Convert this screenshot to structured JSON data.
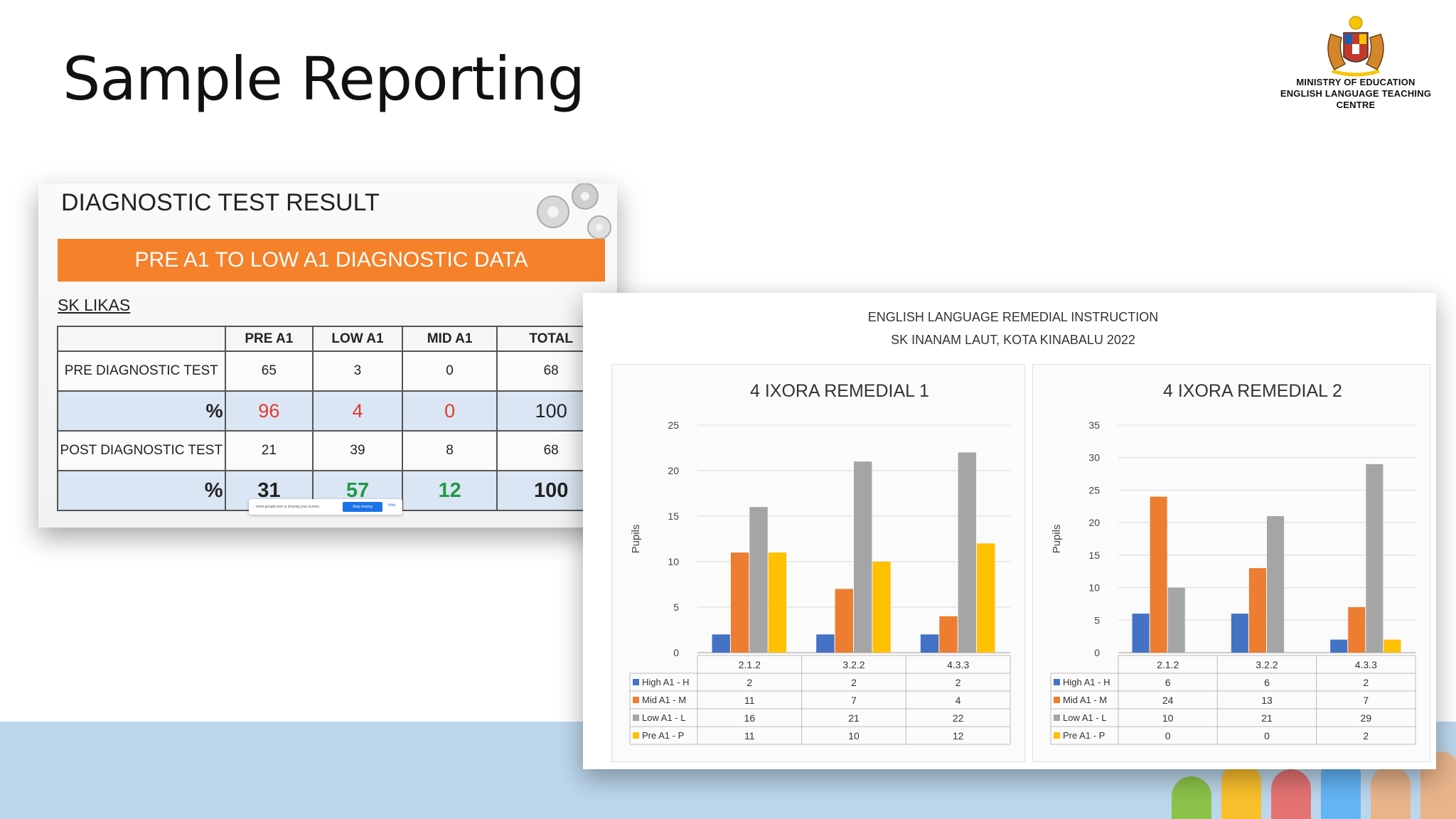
{
  "slide": {
    "title": "Sample Reporting"
  },
  "logo": {
    "name": "crest-icon",
    "org_line1": "MINISTRY OF EDUCATION",
    "org_line2": "ENGLISH LANGUAGE TEACHING CENTRE"
  },
  "diagnostic": {
    "title": "DIAGNOSTIC TEST RESULT",
    "banner": "PRE A1 TO LOW A1 DIAGNOSTIC DATA",
    "school": "SK LIKAS",
    "headers": [
      "",
      "PRE A1",
      "LOW A1",
      "MID A1",
      "TOTAL"
    ],
    "rows": [
      {
        "label": "PRE DIAGNOSTIC TEST",
        "values": [
          "65",
          "3",
          "0",
          "68"
        ]
      },
      {
        "label": "%",
        "values": [
          "96",
          "4",
          "0",
          "100"
        ]
      },
      {
        "label": "POST DIAGNOSTIC TEST",
        "values": [
          "21",
          "39",
          "8",
          "68"
        ]
      },
      {
        "label": "%",
        "values": [
          "31",
          "57",
          "12",
          "100"
        ]
      }
    ],
    "share_bar": {
      "text": "meet.google.com is sharing your screen.",
      "button": "Stop sharing",
      "hide": "Hide"
    },
    "colors": {
      "banner": "#f5812a",
      "pct_pre": "#e23a2e",
      "pct_post": "#1f9a45"
    }
  },
  "remedial": {
    "title_line1": "ENGLISH LANGUAGE REMEDIAL INSTRUCTION",
    "title_line2": "SK INANAM LAUT, KOTA KINABALU 2022"
  },
  "chart_data": [
    {
      "type": "bar",
      "title": "4 IXORA REMEDIAL 1",
      "ylabel": "Pupils",
      "xlabel": "",
      "ylim": [
        0,
        25
      ],
      "yticks": [
        0,
        5,
        10,
        15,
        20,
        25
      ],
      "categories": [
        "2.1.2",
        "3.2.2",
        "4.3.3"
      ],
      "grid": true,
      "legend": "table-below",
      "series": [
        {
          "name": "High A1 - H",
          "color": "#4472c4",
          "values": [
            2,
            2,
            2
          ]
        },
        {
          "name": "Mid A1 - M",
          "color": "#ed7d31",
          "values": [
            11,
            7,
            4
          ]
        },
        {
          "name": "Low A1 - L",
          "color": "#a5a5a5",
          "values": [
            16,
            21,
            22
          ]
        },
        {
          "name": "Pre A1 - P",
          "color": "#ffc000",
          "values": [
            11,
            10,
            12
          ]
        }
      ]
    },
    {
      "type": "bar",
      "title": "4 IXORA REMEDIAL 2",
      "ylabel": "Pupils",
      "xlabel": "",
      "ylim": [
        0,
        35
      ],
      "yticks": [
        0,
        5,
        10,
        15,
        20,
        25,
        30,
        35
      ],
      "categories": [
        "2.1.2",
        "3.2.2",
        "4.3.3"
      ],
      "grid": true,
      "legend": "table-below",
      "series": [
        {
          "name": "High A1 - H",
          "color": "#4472c4",
          "values": [
            6,
            6,
            2
          ]
        },
        {
          "name": "Mid A1 - M",
          "color": "#ed7d31",
          "values": [
            24,
            13,
            7
          ]
        },
        {
          "name": "Low A1 - L",
          "color": "#a5a5a5",
          "values": [
            10,
            21,
            29
          ]
        },
        {
          "name": "Pre A1 - P",
          "color": "#ffc000",
          "values": [
            0,
            0,
            2
          ]
        }
      ]
    }
  ]
}
